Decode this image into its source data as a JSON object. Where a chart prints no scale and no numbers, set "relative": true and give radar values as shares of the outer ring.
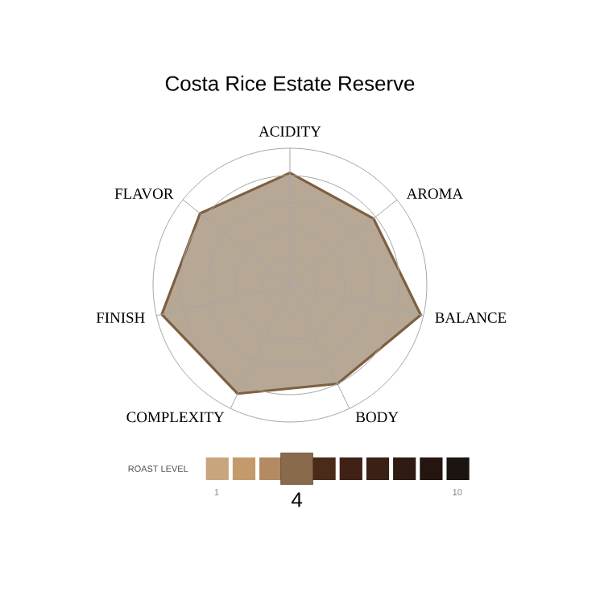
{
  "chart_data": [
    {
      "type": "radar",
      "title": "Costa Rice Estate Reserve",
      "categories": [
        "ACIDITY",
        "AROMA",
        "BALANCE",
        "BODY",
        "COMPLEXITY",
        "FINISH",
        "FLAVOR"
      ],
      "relative": true,
      "grid": true,
      "series": [
        {
          "color": "#7d6040",
          "values": [
            0.82,
            0.78,
            0.98,
            0.8,
            0.88,
            0.96,
            0.84
          ]
        }
      ]
    },
    {
      "type": "other",
      "title": "ROAST LEVEL",
      "categories": [
        "1",
        null,
        null,
        null,
        null,
        null,
        null,
        null,
        null,
        "10"
      ],
      "colors": [
        "#c9a57e",
        "#c49a6c",
        "#b38a62",
        "#8a6a4c",
        "#4a2a18",
        "#3f2215",
        "#3a2116",
        "#2f1b14",
        "#24160f",
        "#1c1410"
      ],
      "values": [
        null,
        null,
        null,
        4,
        null,
        null,
        null,
        null,
        null,
        null
      ],
      "value_labels": [
        null,
        null,
        null,
        "4",
        null,
        null,
        null,
        null,
        null,
        null
      ]
    }
  ]
}
